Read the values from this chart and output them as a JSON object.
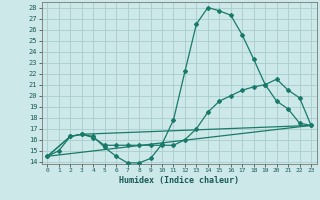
{
  "xlabel": "Humidex (Indice chaleur)",
  "bg_color": "#cce8e8",
  "grid_color": "#aacccc",
  "line_color": "#1a7a6a",
  "xlim": [
    -0.5,
    23.5
  ],
  "ylim": [
    13.8,
    28.5
  ],
  "xticks": [
    0,
    1,
    2,
    3,
    4,
    5,
    6,
    7,
    8,
    9,
    10,
    11,
    12,
    13,
    14,
    15,
    16,
    17,
    18,
    19,
    20,
    21,
    22,
    23
  ],
  "yticks": [
    14,
    15,
    16,
    17,
    18,
    19,
    20,
    21,
    22,
    23,
    24,
    25,
    26,
    27,
    28
  ],
  "line1_x": [
    0,
    1,
    2,
    3,
    4,
    5,
    6,
    7,
    8,
    9,
    10,
    11,
    12,
    13,
    14,
    15,
    16,
    17,
    18,
    19,
    20,
    21,
    22,
    23
  ],
  "line1_y": [
    14.5,
    15.0,
    16.3,
    16.5,
    16.3,
    15.3,
    14.5,
    13.9,
    13.9,
    14.3,
    15.6,
    17.8,
    22.2,
    26.5,
    28.0,
    27.7,
    27.3,
    25.5,
    23.3,
    21.0,
    19.5,
    18.8,
    17.5,
    17.3
  ],
  "line2_x": [
    0,
    2,
    3,
    4,
    5,
    6,
    7,
    8,
    9,
    10,
    11,
    12,
    13,
    14,
    15,
    16,
    17,
    18,
    19,
    20,
    21,
    22,
    23
  ],
  "line2_y": [
    14.5,
    16.3,
    16.5,
    16.2,
    15.5,
    15.5,
    15.5,
    15.5,
    15.5,
    15.5,
    15.5,
    16.0,
    17.0,
    18.5,
    19.5,
    20.0,
    20.5,
    20.8,
    21.0,
    21.5,
    20.5,
    19.8,
    17.3
  ],
  "line3_x": [
    0,
    23
  ],
  "line3_y": [
    14.5,
    17.3
  ],
  "line4_x": [
    0,
    2,
    3,
    23
  ],
  "line4_y": [
    14.5,
    16.3,
    16.5,
    17.3
  ]
}
